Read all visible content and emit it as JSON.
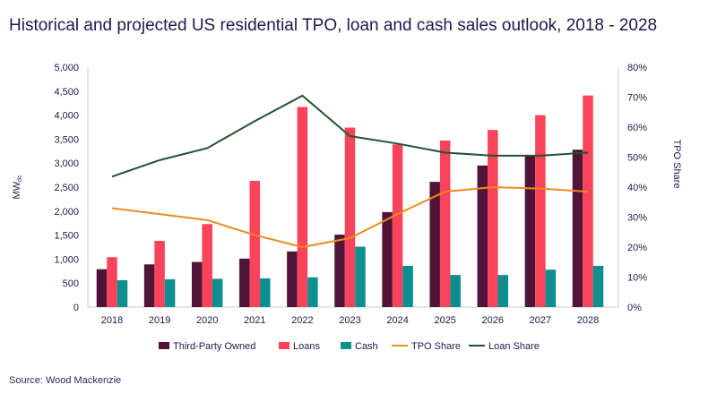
{
  "chart_data": {
    "type": "bar",
    "title": "Historical and projected US residential TPO, loan and cash sales outlook, 2018 - 2028",
    "source": "Source: Wood Mackenzie",
    "ylabel": "MW",
    "ylabel_sub": "dc",
    "y2label": "TPO Share",
    "ylim": [
      0,
      5000
    ],
    "yticks": [
      "0",
      "500",
      "1,000",
      "1,500",
      "2,000",
      "2,500",
      "3,000",
      "3,500",
      "4,000",
      "4,500",
      "5,000"
    ],
    "y2lim": [
      0,
      80
    ],
    "y2ticks": [
      "0%",
      "10%",
      "20%",
      "30%",
      "40%",
      "50%",
      "60%",
      "70%",
      "80%"
    ],
    "grid": false,
    "legend_position": "bottom",
    "categories": [
      "2018",
      "2019",
      "2020",
      "2021",
      "2022",
      "2023",
      "2024",
      "2025",
      "2026",
      "2027",
      "2028"
    ],
    "series": [
      {
        "name": "Third-Party Owned",
        "type": "bar",
        "color": "#4f1438",
        "values": [
          790,
          890,
          940,
          1010,
          1160,
          1510,
          1980,
          2610,
          2950,
          3150,
          3280
        ]
      },
      {
        "name": "Loans",
        "type": "bar",
        "color": "#f9435a",
        "values": [
          1040,
          1380,
          1730,
          2630,
          4170,
          3740,
          3390,
          3470,
          3690,
          4000,
          4410
        ]
      },
      {
        "name": "Cash",
        "type": "bar",
        "color": "#0e8f8f",
        "values": [
          560,
          580,
          590,
          600,
          620,
          1260,
          860,
          670,
          670,
          780,
          860
        ]
      },
      {
        "name": "TPO Share",
        "type": "line",
        "axis": "right",
        "color": "#f08a1c",
        "values": [
          33,
          31,
          29,
          24,
          20,
          23,
          31,
          38.5,
          40,
          39.5,
          38.5
        ]
      },
      {
        "name": "Loan Share",
        "type": "line",
        "axis": "right",
        "color": "#245230",
        "values": [
          43.5,
          49,
          53,
          62,
          70.5,
          57,
          54.5,
          51.5,
          50.5,
          50.5,
          51.5
        ]
      }
    ]
  }
}
